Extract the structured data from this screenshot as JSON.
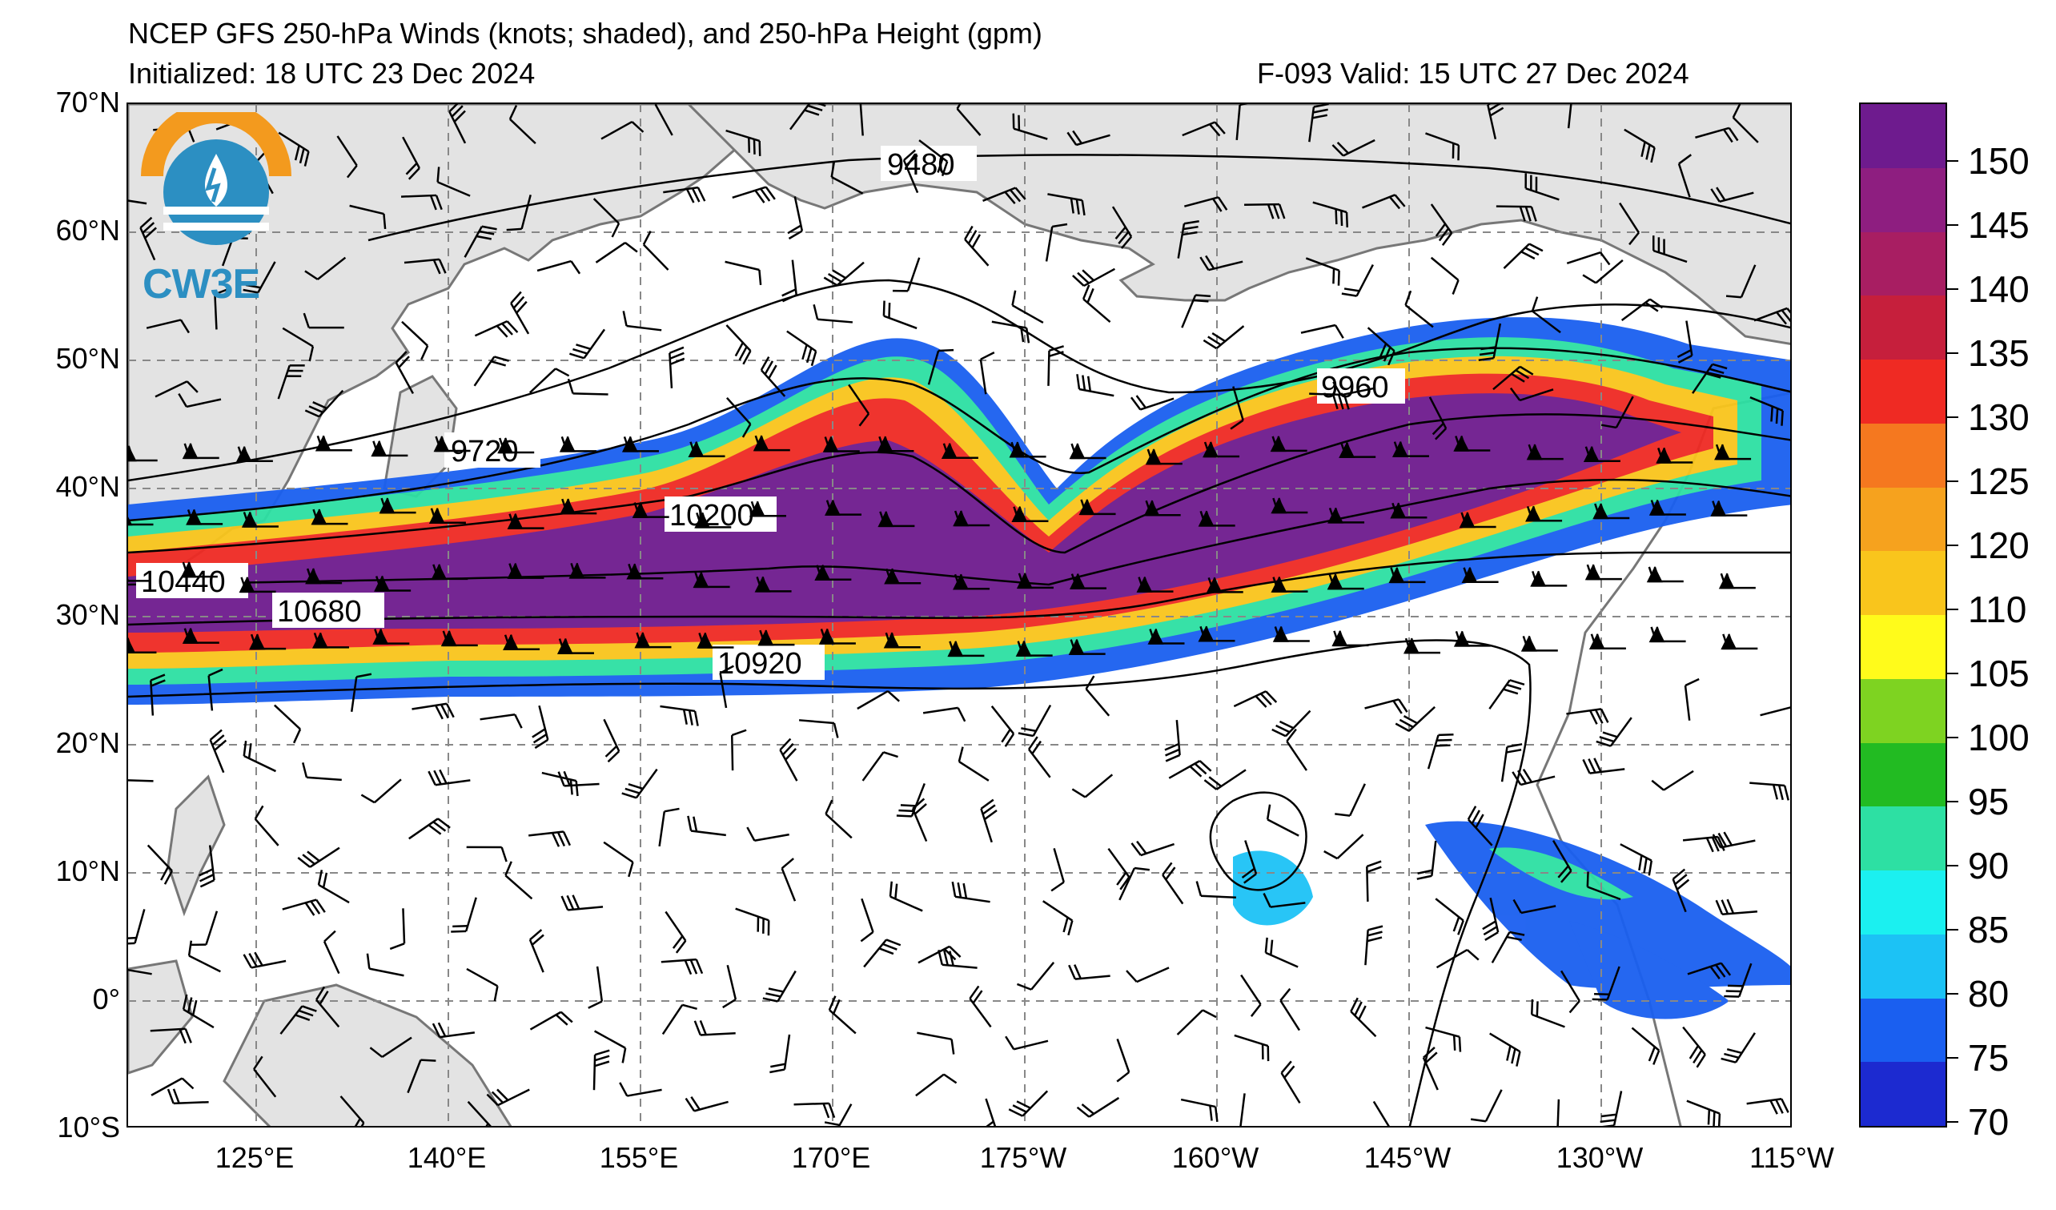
{
  "header": {
    "title": "NCEP GFS 250-hPa Winds (knots; shaded), and 250-hPa Height (gpm)",
    "initialized": "Initialized: 18 UTC 23 Dec 2024",
    "valid": "F-093  Valid: 15 UTC 27 Dec 2024"
  },
  "logo": {
    "text": "CW3E",
    "icon": "cw3e-logo-icon"
  },
  "map": {
    "lat_labels": [
      "70°N",
      "60°N",
      "50°N",
      "40°N",
      "30°N",
      "20°N",
      "10°N",
      "0°",
      "10°S"
    ],
    "lon_labels": [
      "125°E",
      "140°E",
      "155°E",
      "170°E",
      "175°W",
      "160°W",
      "145°W",
      "130°W",
      "115°W"
    ],
    "contour_labels": [
      "9480",
      "9720",
      "9960",
      "10200",
      "10440",
      "10680",
      "10920"
    ],
    "land_color": "#e3e3e3",
    "coast_color": "#777777"
  },
  "colorbar": {
    "labels": [
      "150",
      "145",
      "140",
      "135",
      "130",
      "125",
      "120",
      "110",
      "105",
      "100",
      "95",
      "90",
      "85",
      "80",
      "75",
      "70"
    ],
    "colors": [
      "#6e1b8e",
      "#8e1e80",
      "#a81e62",
      "#c61f3c",
      "#ef2a23",
      "#f5781f",
      "#f6a21e",
      "#f9c51c",
      "#fffb1b",
      "#7ed321",
      "#22bb22",
      "#2de0a3",
      "#1bf0f0",
      "#1cc2f5",
      "#1a5ff0",
      "#1c2ad0"
    ]
  }
}
